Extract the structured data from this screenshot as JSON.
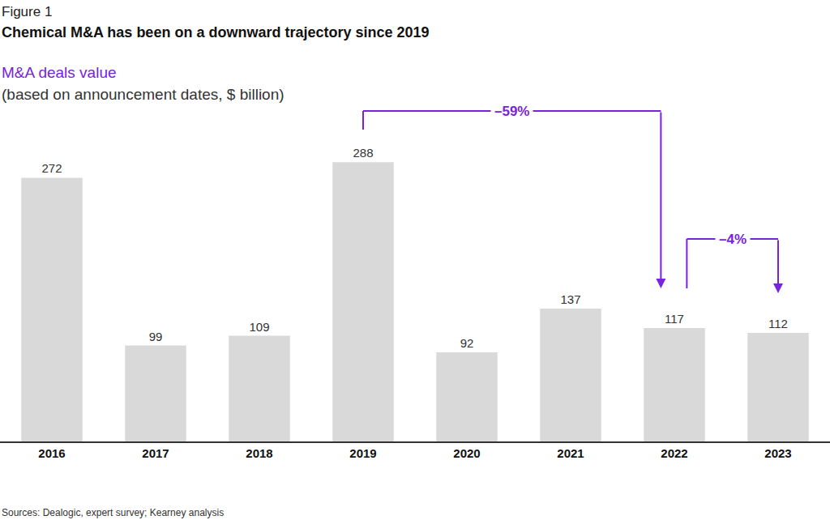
{
  "chart_data": {
    "type": "bar",
    "figure_label": "Figure 1",
    "title": "Chemical M&A has been on a downward trajectory since 2019",
    "subtitle": "M&A deals value",
    "y_label": "(based on announcement dates, $ billion)",
    "source": "Sources: Dealogic, expert survey; Kearney analysis",
    "categories": [
      "2016",
      "2017",
      "2018",
      "2019",
      "2020",
      "2021",
      "2022",
      "2023"
    ],
    "values": [
      272,
      99,
      109,
      288,
      92,
      137,
      117,
      112
    ],
    "color": "#d9d9d9",
    "data_labels": true,
    "tick_labels": "x",
    "grid": false,
    "ylim": [
      0,
      320
    ],
    "annotations": [
      {
        "text": "–59%",
        "from": "2019",
        "to": "2022"
      },
      {
        "text": "–4%",
        "from": "2022",
        "to": "2023"
      }
    ]
  }
}
